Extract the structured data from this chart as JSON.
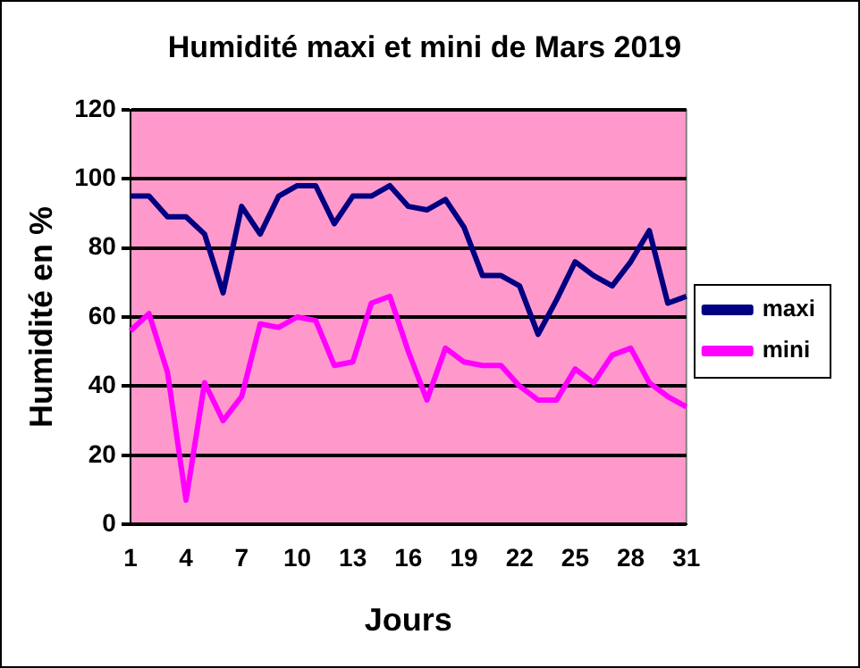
{
  "chart_data": {
    "type": "line",
    "title": "Humidité maxi et mini de Mars 2019",
    "xlabel": "Jours",
    "ylabel": "Humidité en %",
    "categories": [
      "1",
      null,
      null,
      "4",
      null,
      null,
      "7",
      null,
      null,
      "10",
      null,
      null,
      "13",
      null,
      null,
      "16",
      null,
      null,
      "19",
      null,
      null,
      "22",
      null,
      null,
      "25",
      null,
      null,
      "28",
      null,
      null,
      "31"
    ],
    "series": [
      {
        "name": "maxi",
        "color": "#000080",
        "values": [
          95,
          95,
          89,
          89,
          84,
          67,
          92,
          84,
          95,
          98,
          98,
          87,
          95,
          95,
          98,
          92,
          91,
          94,
          86,
          72,
          72,
          69,
          55,
          65,
          76,
          72,
          69,
          76,
          85,
          64,
          66
        ]
      },
      {
        "name": "mini",
        "color": "#ff00ff",
        "values": [
          56,
          61,
          44,
          7,
          41,
          30,
          37,
          58,
          57,
          60,
          59,
          46,
          47,
          64,
          66,
          50,
          36,
          51,
          47,
          46,
          46,
          40,
          36,
          36,
          45,
          41,
          49,
          51,
          41,
          37,
          34
        ]
      }
    ],
    "ylim": [
      0,
      120
    ],
    "yticks": [
      0,
      20,
      40,
      60,
      80,
      100,
      120
    ],
    "grid": "y",
    "legend": "right",
    "marker": "none",
    "line_style": "solid"
  }
}
